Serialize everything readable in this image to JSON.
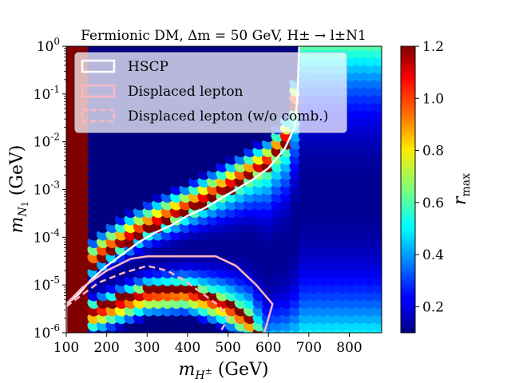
{
  "chart_data": {
    "type": "heatmap",
    "title": "Fermionic DM, Δm = 50 GeV, H± → l±N1",
    "xlabel": "m_H± (GeV)",
    "ylabel": "m_N1 (GeV)",
    "xlim": [
      100,
      880
    ],
    "ylim_log10": [
      -6,
      0
    ],
    "x_ticks": [
      {
        "value": 100,
        "label": "100"
      },
      {
        "value": 200,
        "label": "200"
      },
      {
        "value": 300,
        "label": "300"
      },
      {
        "value": 400,
        "label": "400"
      },
      {
        "value": 500,
        "label": "500"
      },
      {
        "value": 600,
        "label": "600"
      },
      {
        "value": 700,
        "label": "700"
      },
      {
        "value": 800,
        "label": "800"
      }
    ],
    "y_ticks": [
      {
        "exp": 0,
        "label": "10^0"
      },
      {
        "exp": -1,
        "label": "10^-1"
      },
      {
        "exp": -2,
        "label": "10^-2"
      },
      {
        "exp": -3,
        "label": "10^-3"
      },
      {
        "exp": -4,
        "label": "10^-4"
      },
      {
        "exp": -5,
        "label": "10^-5"
      },
      {
        "exp": -6,
        "label": "10^-6"
      }
    ],
    "colorbar": {
      "label": "r_max",
      "range": [
        0.1,
        1.2
      ],
      "ticks": [
        {
          "value": 1.2,
          "label": "1.2"
        },
        {
          "value": 1.0,
          "label": "1.0"
        },
        {
          "value": 0.8,
          "label": "0.8"
        },
        {
          "value": 0.6,
          "label": "0.6"
        },
        {
          "value": 0.4,
          "label": "0.4"
        },
        {
          "value": 0.2,
          "label": "0.2"
        }
      ]
    },
    "series": [
      {
        "name": "HSCP",
        "style": "solid",
        "color": "#ffffff",
        "points": [
          [
            100,
            -5.4
          ],
          [
            130,
            -5.2
          ],
          [
            160,
            -4.9
          ],
          [
            200,
            -4.6
          ],
          [
            240,
            -4.35
          ],
          [
            280,
            -4.1
          ],
          [
            320,
            -3.9
          ],
          [
            360,
            -3.75
          ],
          [
            400,
            -3.55
          ],
          [
            440,
            -3.4
          ],
          [
            480,
            -3.2
          ],
          [
            520,
            -3.0
          ],
          [
            560,
            -2.8
          ],
          [
            600,
            -2.55
          ],
          [
            640,
            -2.15
          ],
          [
            665,
            -1.7
          ],
          [
            672,
            -1.0
          ],
          [
            676,
            0.0
          ]
        ]
      },
      {
        "name": "Displaced lepton",
        "style": "solid",
        "color": "#ffb6c1",
        "points": [
          [
            100,
            -6.0
          ],
          [
            100,
            -5.4
          ],
          [
            140,
            -5.05
          ],
          [
            200,
            -4.7
          ],
          [
            260,
            -4.45
          ],
          [
            300,
            -4.4
          ],
          [
            380,
            -4.4
          ],
          [
            470,
            -4.4
          ],
          [
            520,
            -4.6
          ],
          [
            570,
            -5.0
          ],
          [
            610,
            -5.4
          ],
          [
            590,
            -6.0
          ]
        ]
      },
      {
        "name": "Displaced lepton (w/o comb.)",
        "style": "dashed",
        "color": "#ffb6c1",
        "points": [
          [
            100,
            -5.45
          ],
          [
            140,
            -5.2
          ],
          [
            180,
            -4.95
          ],
          [
            240,
            -4.75
          ],
          [
            300,
            -4.6
          ],
          [
            350,
            -4.7
          ],
          [
            400,
            -4.95
          ],
          [
            440,
            -5.2
          ],
          [
            480,
            -5.45
          ],
          [
            500,
            -5.7
          ],
          [
            480,
            -6.0
          ]
        ]
      }
    ],
    "legend": {
      "placement": "top-left",
      "entries": [
        "HSCP",
        "Displaced lepton",
        "Displaced lepton (w/o comb.)"
      ]
    }
  }
}
